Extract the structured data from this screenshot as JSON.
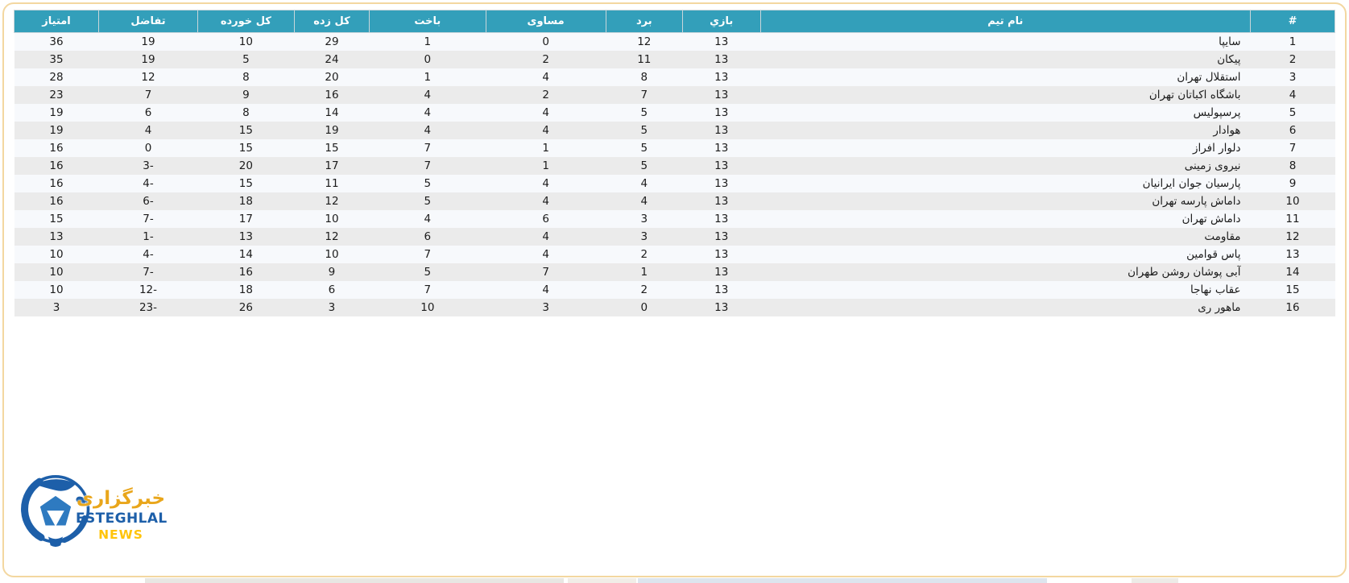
{
  "colors": {
    "header_bg": "#339fba",
    "frame_border": "#f3d7a0",
    "row_odd": "#f7f9fc",
    "row_even": "#ebebeb",
    "logo_blue": "#1d5fa9",
    "logo_gold": "#e9a61b",
    "logo_yellow": "#ffc40c"
  },
  "table": {
    "columns": [
      {
        "key": "rank",
        "label": "#"
      },
      {
        "key": "team",
        "label": "نام تیم"
      },
      {
        "key": "played",
        "label": "بازي"
      },
      {
        "key": "won",
        "label": "برد"
      },
      {
        "key": "drawn",
        "label": "مساوی"
      },
      {
        "key": "lost",
        "label": "باخت"
      },
      {
        "key": "gf",
        "label": "کل زده"
      },
      {
        "key": "ga",
        "label": "کل خورده"
      },
      {
        "key": "gd",
        "label": "تفاضل"
      },
      {
        "key": "pts",
        "label": "امتیاز"
      }
    ],
    "rows": [
      {
        "rank": "1",
        "team": "سایپا",
        "played": "13",
        "won": "12",
        "drawn": "0",
        "lost": "1",
        "gf": "29",
        "ga": "10",
        "gd": "19",
        "pts": "36"
      },
      {
        "rank": "2",
        "team": "پیکان",
        "played": "13",
        "won": "11",
        "drawn": "2",
        "lost": "0",
        "gf": "24",
        "ga": "5",
        "gd": "19",
        "pts": "35"
      },
      {
        "rank": "3",
        "team": "استقلال تهران",
        "played": "13",
        "won": "8",
        "drawn": "4",
        "lost": "1",
        "gf": "20",
        "ga": "8",
        "gd": "12",
        "pts": "28"
      },
      {
        "rank": "4",
        "team": "باشگاه اکباتان تهران",
        "played": "13",
        "won": "7",
        "drawn": "2",
        "lost": "4",
        "gf": "16",
        "ga": "9",
        "gd": "7",
        "pts": "23"
      },
      {
        "rank": "5",
        "team": "پرسپولیس",
        "played": "13",
        "won": "5",
        "drawn": "4",
        "lost": "4",
        "gf": "14",
        "ga": "8",
        "gd": "6",
        "pts": "19"
      },
      {
        "rank": "6",
        "team": "هوادار",
        "played": "13",
        "won": "5",
        "drawn": "4",
        "lost": "4",
        "gf": "19",
        "ga": "15",
        "gd": "4",
        "pts": "19"
      },
      {
        "rank": "7",
        "team": "دلوار افراز",
        "played": "13",
        "won": "5",
        "drawn": "1",
        "lost": "7",
        "gf": "15",
        "ga": "15",
        "gd": "0",
        "pts": "16"
      },
      {
        "rank": "8",
        "team": "نیروی زمینی",
        "played": "13",
        "won": "5",
        "drawn": "1",
        "lost": "7",
        "gf": "17",
        "ga": "20",
        "gd": "-3",
        "pts": "16"
      },
      {
        "rank": "9",
        "team": "پارسیان جوان ایرانیان",
        "played": "13",
        "won": "4",
        "drawn": "4",
        "lost": "5",
        "gf": "11",
        "ga": "15",
        "gd": "-4",
        "pts": "16"
      },
      {
        "rank": "10",
        "team": "داماش پارسه تهران",
        "played": "13",
        "won": "4",
        "drawn": "4",
        "lost": "5",
        "gf": "12",
        "ga": "18",
        "gd": "-6",
        "pts": "16"
      },
      {
        "rank": "11",
        "team": "داماش تهران",
        "played": "13",
        "won": "3",
        "drawn": "6",
        "lost": "4",
        "gf": "10",
        "ga": "17",
        "gd": "-7",
        "pts": "15"
      },
      {
        "rank": "12",
        "team": "مقاومت",
        "played": "13",
        "won": "3",
        "drawn": "4",
        "lost": "6",
        "gf": "12",
        "ga": "13",
        "gd": "-1",
        "pts": "13"
      },
      {
        "rank": "13",
        "team": "پاس قوامین",
        "played": "13",
        "won": "2",
        "drawn": "4",
        "lost": "7",
        "gf": "10",
        "ga": "14",
        "gd": "-4",
        "pts": "10"
      },
      {
        "rank": "14",
        "team": "آبی پوشان روشن طهران",
        "played": "13",
        "won": "1",
        "drawn": "7",
        "lost": "5",
        "gf": "9",
        "ga": "16",
        "gd": "-7",
        "pts": "10"
      },
      {
        "rank": "15",
        "team": "عقاب نهاجا",
        "played": "13",
        "won": "2",
        "drawn": "4",
        "lost": "7",
        "gf": "6",
        "ga": "18",
        "gd": "-12",
        "pts": "10"
      },
      {
        "rank": "16",
        "team": "ماهور ری",
        "played": "13",
        "won": "0",
        "drawn": "3",
        "lost": "10",
        "gf": "3",
        "ga": "26",
        "gd": "-23",
        "pts": "3"
      }
    ]
  },
  "logo": {
    "agency_fa": "خبرگزاری",
    "title": "ESTEGHLAL",
    "subtitle": "NEWS"
  }
}
